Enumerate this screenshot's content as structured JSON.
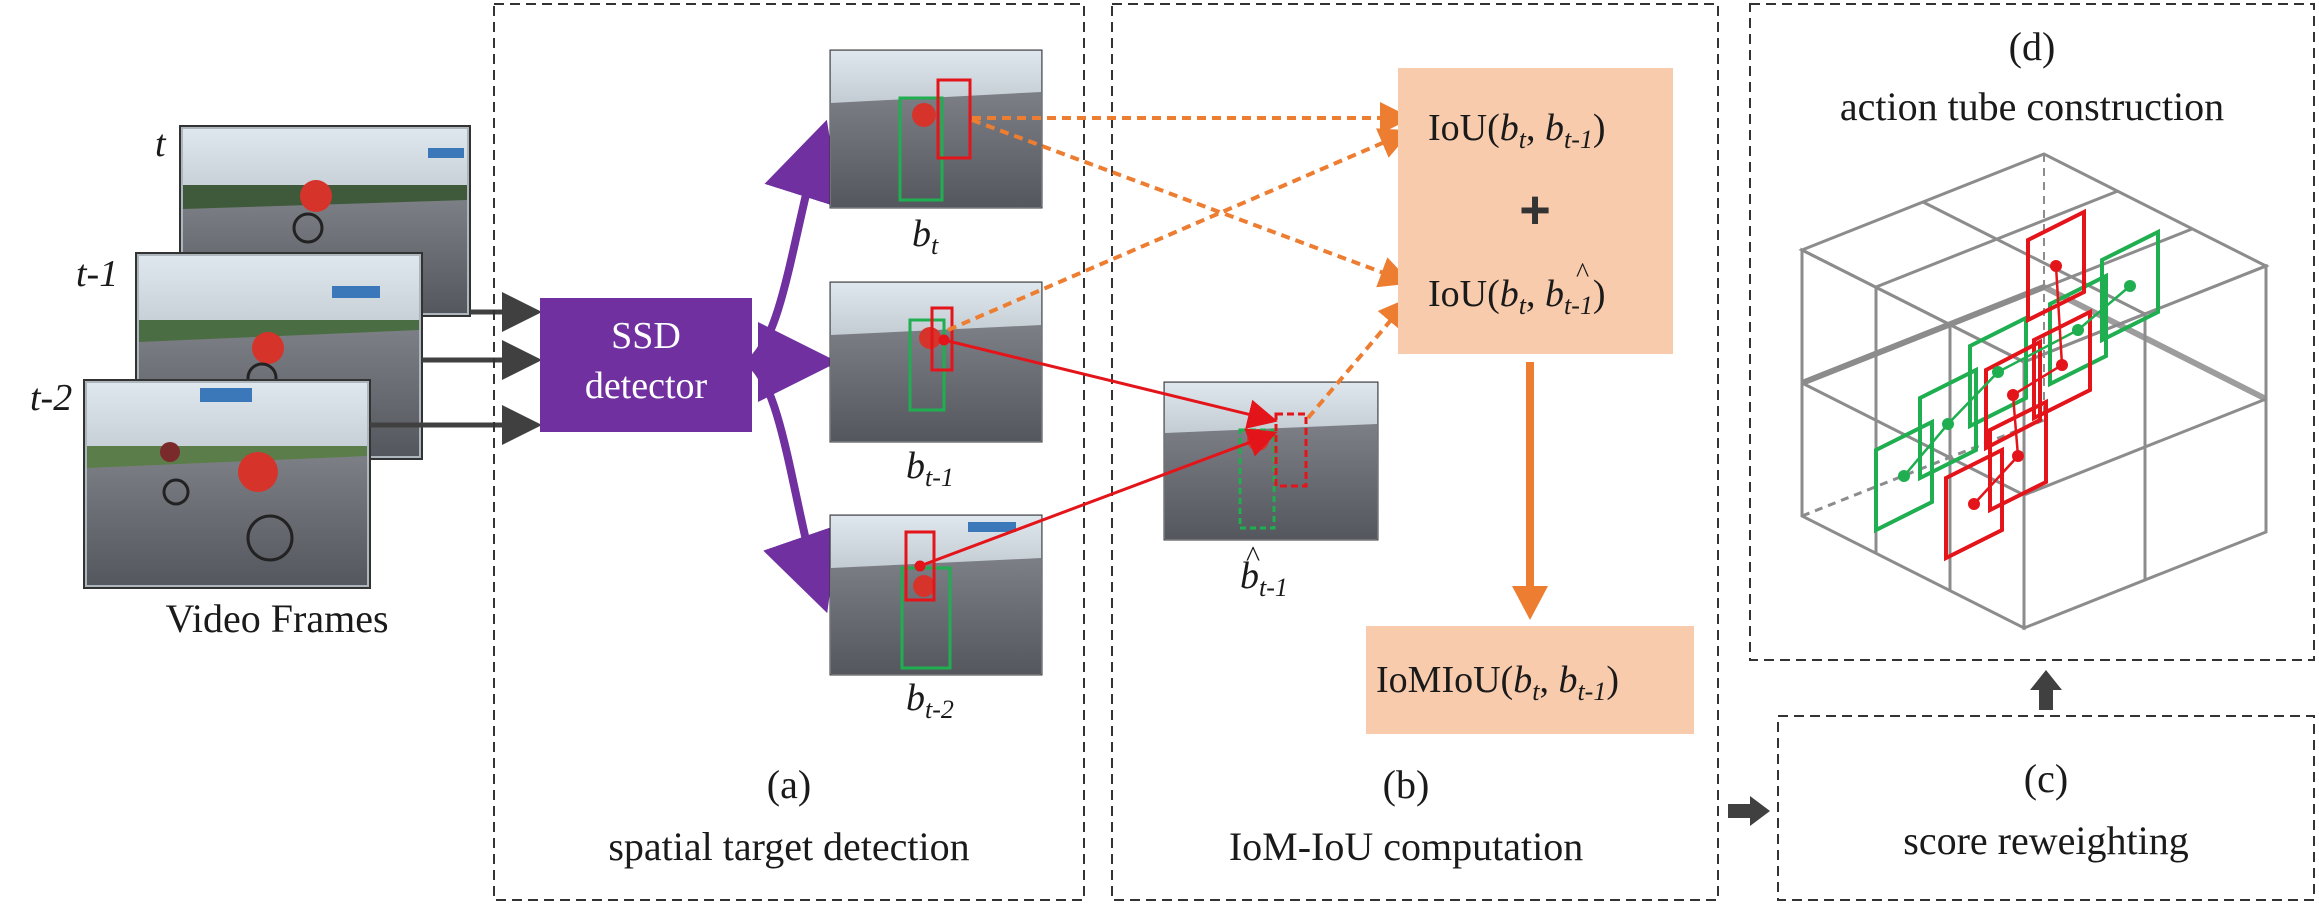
{
  "input": {
    "frame_labels": [
      "t",
      "t-1",
      "t-2"
    ],
    "caption": "Video Frames"
  },
  "detector": {
    "line1": "SSD",
    "line2": "detector"
  },
  "panel_a": {
    "letter": "(a)",
    "title": "spatial target detection",
    "box_labels": [
      {
        "base": "b",
        "sub": "t"
      },
      {
        "base": "b",
        "sub": "t-1"
      },
      {
        "base": "b",
        "sub": "t-2"
      }
    ]
  },
  "panel_b": {
    "letter": "(b)",
    "title": "IoM-IoU computation",
    "predicted_label": {
      "base": "b",
      "sub": "t-1",
      "accent": "^"
    },
    "iou_1": {
      "prefix": "IoU(",
      "arg1": "b",
      "arg1_sub": "t",
      "sep": ", ",
      "arg2": "b",
      "arg2_sub": "t-1",
      "suffix": ")"
    },
    "plus": "+",
    "iou_2": {
      "prefix": "IoU(",
      "arg1": "b",
      "arg1_sub": "t",
      "sep": ", ",
      "arg2": "b",
      "arg2_accent": "^",
      "arg2_sub": "t-1",
      "suffix": ")"
    },
    "result": {
      "prefix": "IoMIoU(",
      "arg1": "b",
      "arg1_sub": "t",
      "sep": ", ",
      "arg2": "b",
      "arg2_sub": "t-1",
      "suffix": ")"
    }
  },
  "panel_c": {
    "letter": "(c)",
    "title": "score reweighting"
  },
  "panel_d": {
    "letter": "(d)",
    "title": "action tube construction"
  },
  "colors": {
    "purple": "#7030a0",
    "orange": "#ed7d31",
    "peach": "#f8cbad",
    "red": "#e3151a",
    "green": "#1fae50",
    "dark_arrow": "#404040",
    "grid": "#8c8c8c"
  }
}
